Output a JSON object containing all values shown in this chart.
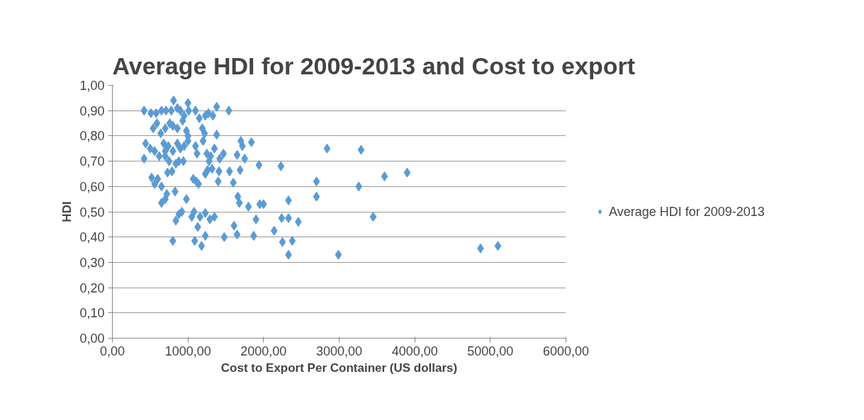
{
  "chart_data": {
    "type": "scatter",
    "title": "Average HDI for 2009-2013 and Cost to export",
    "xlabel": "Cost to Export Per Container (US dollars)",
    "ylabel": "HDI",
    "series": [
      {
        "name": "Average HDI for 2009-2013",
        "color": "#5b9bd5",
        "x": [
          420,
          510,
          580,
          650,
          710,
          780,
          810,
          860,
          900,
          950,
          1000,
          1010,
          1100,
          1150,
          1230,
          1270,
          1330,
          1380,
          1540,
          540,
          590,
          640,
          700,
          760,
          800,
          860,
          930,
          980,
          1000,
          1190,
          1220,
          1380,
          440,
          500,
          560,
          620,
          680,
          700,
          740,
          800,
          860,
          900,
          950,
          1000,
          1100,
          1120,
          1200,
          1250,
          1300,
          1350,
          1420,
          1470,
          1700,
          1720,
          1840,
          1750,
          420,
          700,
          750,
          840,
          880,
          940,
          1280,
          1320,
          1410,
          1650,
          2230,
          1690,
          1550,
          520,
          560,
          600,
          650,
          730,
          790,
          1070,
          1110,
          1140,
          1230,
          1260,
          1400,
          1600,
          1940,
          650,
          700,
          720,
          830,
          980,
          1660,
          1680,
          2330,
          2700,
          2700,
          2840,
          3290,
          3600,
          3900,
          3260,
          880,
          920,
          1050,
          1080,
          1160,
          1230,
          1290,
          1350,
          1800,
          1950,
          2000,
          1900,
          2240,
          2330,
          2460,
          3450,
          800,
          840,
          1090,
          1130,
          1180,
          1230,
          1480,
          1610,
          1650,
          1870,
          2140,
          2250,
          2330,
          2380,
          2990,
          4870,
          5100
        ],
        "values": [
          0.9,
          0.89,
          0.89,
          0.9,
          0.9,
          0.9,
          0.94,
          0.91,
          0.9,
          0.88,
          0.93,
          0.9,
          0.9,
          0.87,
          0.88,
          0.89,
          0.88,
          0.915,
          0.9,
          0.83,
          0.85,
          0.81,
          0.83,
          0.85,
          0.84,
          0.83,
          0.86,
          0.82,
          0.8,
          0.83,
          0.81,
          0.805,
          0.77,
          0.75,
          0.74,
          0.72,
          0.77,
          0.74,
          0.76,
          0.74,
          0.77,
          0.75,
          0.76,
          0.78,
          0.76,
          0.73,
          0.78,
          0.73,
          0.72,
          0.75,
          0.71,
          0.73,
          0.78,
          0.76,
          0.775,
          0.71,
          0.71,
          0.72,
          0.7,
          0.69,
          0.7,
          0.7,
          0.7,
          0.67,
          0.66,
          0.725,
          0.68,
          0.665,
          0.66,
          0.635,
          0.61,
          0.63,
          0.6,
          0.655,
          0.66,
          0.63,
          0.62,
          0.61,
          0.65,
          0.665,
          0.62,
          0.615,
          0.685,
          0.535,
          0.55,
          0.57,
          0.58,
          0.55,
          0.56,
          0.535,
          0.545,
          0.56,
          0.62,
          0.75,
          0.745,
          0.64,
          0.655,
          0.6,
          0.49,
          0.5,
          0.48,
          0.5,
          0.48,
          0.495,
          0.47,
          0.48,
          0.52,
          0.53,
          0.53,
          0.47,
          0.475,
          0.475,
          0.46,
          0.48,
          0.385,
          0.465,
          0.385,
          0.44,
          0.365,
          0.405,
          0.4,
          0.445,
          0.41,
          0.405,
          0.425,
          0.38,
          0.33,
          0.385,
          0.33,
          0.355,
          0.365
        ]
      }
    ],
    "xlim": [
      0,
      6000
    ],
    "xticks": [
      {
        "value": 0,
        "label": "0,00"
      },
      {
        "value": 1000,
        "label": "1000,00"
      },
      {
        "value": 2000,
        "label": "2000,00"
      },
      {
        "value": 3000,
        "label": "3000,00"
      },
      {
        "value": 4000,
        "label": "4000,00"
      },
      {
        "value": 5000,
        "label": "5000,00"
      },
      {
        "value": 6000,
        "label": "6000,00"
      }
    ],
    "ylim": [
      0,
      1
    ],
    "yticks": [
      {
        "value": 0,
        "label": "0,00"
      },
      {
        "value": 0.1,
        "label": "0,10"
      },
      {
        "value": 0.2,
        "label": "0,20"
      },
      {
        "value": 0.3,
        "label": "0,30"
      },
      {
        "value": 0.4,
        "label": "0,40"
      },
      {
        "value": 0.5,
        "label": "0,50"
      },
      {
        "value": 0.6,
        "label": "0,60"
      },
      {
        "value": 0.7,
        "label": "0,70"
      },
      {
        "value": 0.8,
        "label": "0,80"
      },
      {
        "value": 0.9,
        "label": "0,90"
      },
      {
        "value": 1.0,
        "label": "1,00"
      }
    ],
    "grid": "y",
    "legend": "right",
    "marker": "diamond"
  }
}
